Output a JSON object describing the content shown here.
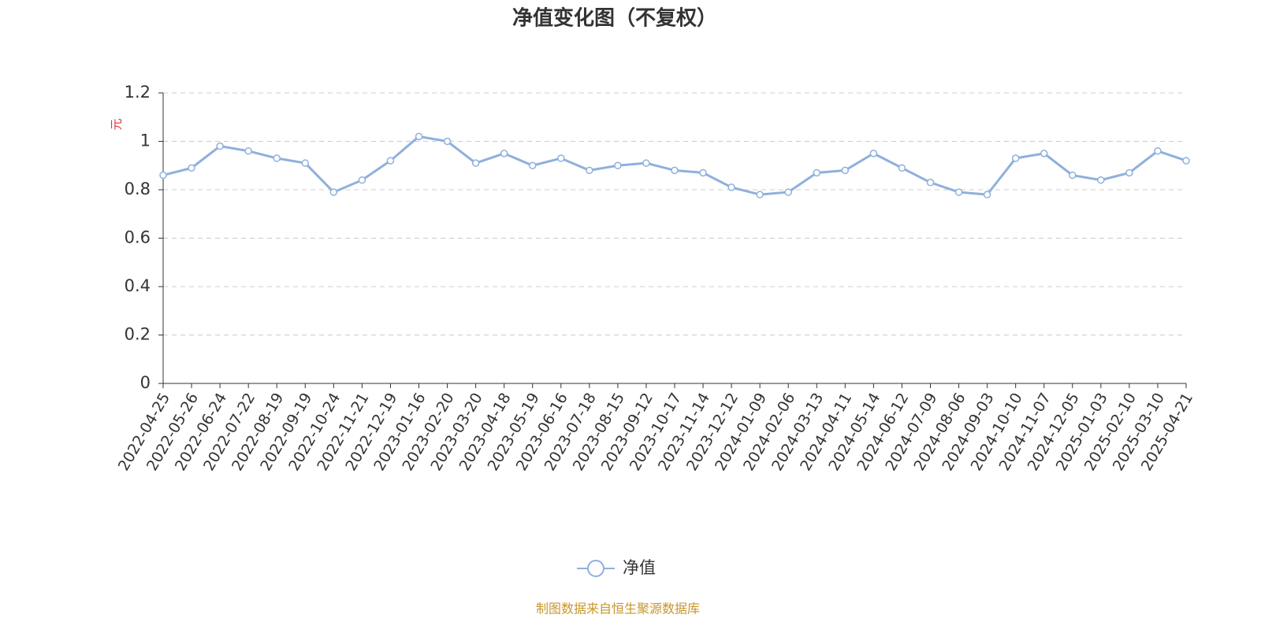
{
  "chart_data": {
    "type": "line",
    "title": "净值变化图（不复权）",
    "y_label": "元",
    "source": "制图数据来自恒生聚源数据库",
    "x": [
      "2022-04-25",
      "2022-05-26",
      "2022-06-24",
      "2022-07-22",
      "2022-08-19",
      "2022-09-19",
      "2022-10-24",
      "2022-11-21",
      "2022-12-19",
      "2023-01-16",
      "2023-02-20",
      "2023-03-20",
      "2023-04-18",
      "2023-05-19",
      "2023-06-16",
      "2023-07-18",
      "2023-08-15",
      "2023-09-12",
      "2023-10-17",
      "2023-11-14",
      "2023-12-12",
      "2024-01-09",
      "2024-02-06",
      "2024-03-13",
      "2024-04-11",
      "2024-05-14",
      "2024-06-12",
      "2024-07-09",
      "2024-08-06",
      "2024-09-03",
      "2024-10-10",
      "2024-11-07",
      "2024-12-05",
      "2025-01-03",
      "2025-02-10",
      "2025-03-10",
      "2025-04-21"
    ],
    "series": [
      {
        "name": "净值",
        "color": "#8fb0dc",
        "values": [
          0.86,
          0.89,
          0.98,
          0.96,
          0.93,
          0.91,
          0.79,
          0.84,
          0.92,
          1.02,
          1.0,
          0.91,
          0.95,
          0.9,
          0.93,
          0.88,
          0.9,
          0.91,
          0.88,
          0.87,
          0.81,
          0.78,
          0.79,
          0.87,
          0.88,
          0.95,
          0.89,
          0.83,
          0.79,
          0.78,
          0.93,
          0.95,
          0.86,
          0.84,
          0.87,
          0.96,
          0.92
        ]
      }
    ],
    "ylim": [
      0,
      1.2
    ],
    "yticks": [
      0,
      0.2,
      0.4,
      0.6,
      0.8,
      1,
      1.2
    ],
    "grid": true
  }
}
